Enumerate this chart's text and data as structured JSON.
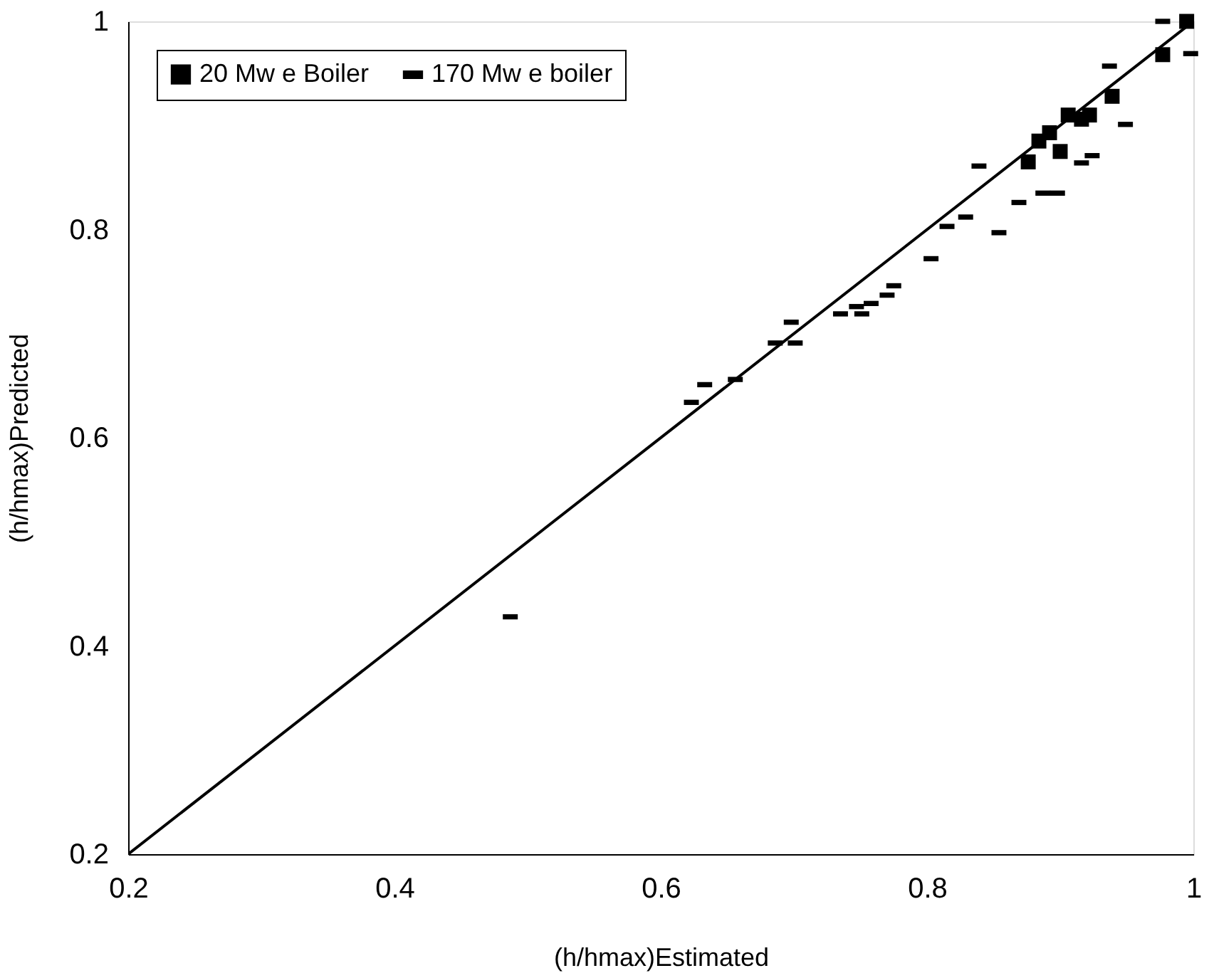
{
  "chart_data": {
    "type": "scatter",
    "xlabel": "(h/hmax)Estimated",
    "ylabel": "(h/hmax)Predicted",
    "xlim": [
      0.2,
      1
    ],
    "ylim": [
      0.2,
      1
    ],
    "xticks": [
      0.2,
      0.4,
      0.6,
      0.8,
      1
    ],
    "yticks": [
      0.2,
      0.4,
      0.6,
      0.8,
      1
    ],
    "grid": false,
    "legend": "top left",
    "series": [
      {
        "name": "20 Mw e Boiler",
        "color": "#000000",
        "marker": "square",
        "x": [
          0.876,
          0.884,
          0.892,
          0.9,
          0.906,
          0.916,
          0.922,
          0.939,
          0.977,
          0.995
        ],
        "values": [
          0.865,
          0.885,
          0.893,
          0.875,
          0.91,
          0.906,
          0.91,
          0.928,
          0.968,
          1.0
        ]
      },
      {
        "name": "170 Mw e boiler",
        "color": "#000000",
        "x": [
          0.487,
          0.623,
          0.633,
          0.656,
          0.686,
          0.698,
          0.701,
          0.735,
          0.747,
          0.751,
          0.758,
          0.77,
          0.775,
          0.803,
          0.815,
          0.829,
          0.839,
          0.854,
          0.869,
          0.887,
          0.898,
          0.916,
          0.924,
          0.937,
          0.949,
          0.977,
          0.998
        ],
        "values": [
          0.428,
          0.634,
          0.651,
          0.656,
          0.691,
          0.711,
          0.691,
          0.719,
          0.726,
          0.719,
          0.729,
          0.737,
          0.746,
          0.772,
          0.803,
          0.812,
          0.861,
          0.797,
          0.826,
          0.835,
          0.835,
          0.864,
          0.871,
          0.957,
          0.901,
          1.0,
          0.969
        ]
      },
      {
        "type": "line",
        "color": "#000000",
        "x": [
          0.2,
          1
        ],
        "values": [
          0.2,
          1
        ]
      }
    ]
  }
}
